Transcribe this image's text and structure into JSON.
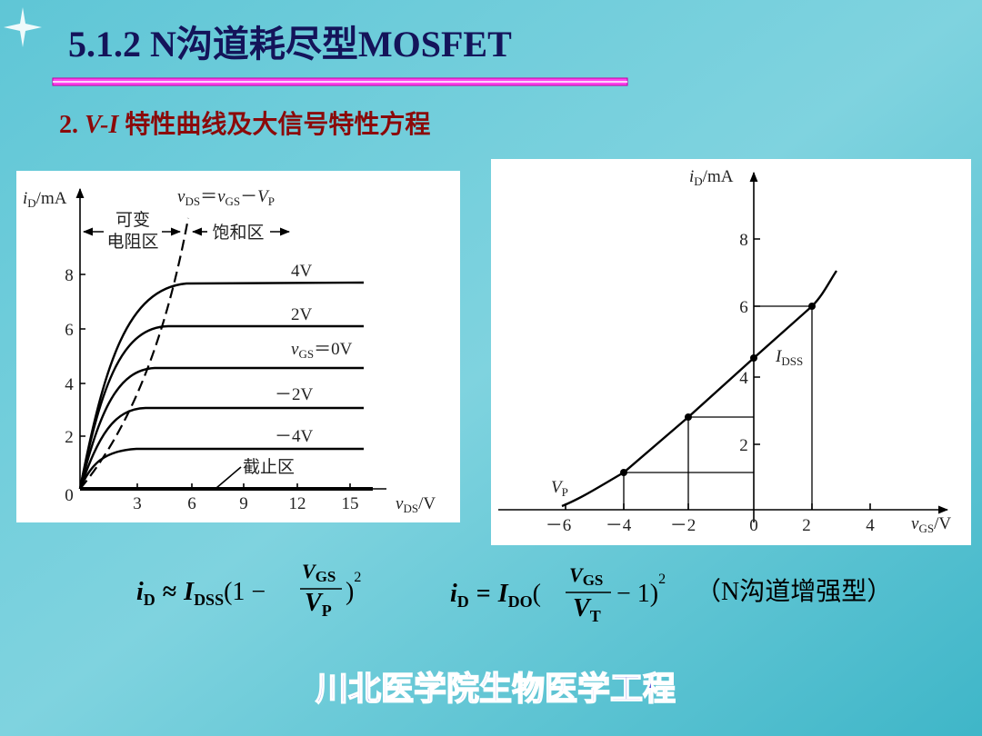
{
  "header": {
    "title": "5.1.2  N沟道耗尽型MOSFET",
    "subtitle_number": "2.",
    "subtitle_vi": "V-I",
    "subtitle_text": "特性曲线及大信号特性方程"
  },
  "output_figure": {
    "y_label": "i",
    "y_label_sub": "D",
    "y_label_unit": "/mA",
    "x_label": "v",
    "x_label_sub": "DS",
    "x_label_unit": "/V",
    "origin": "0",
    "xticks": [
      "3",
      "6",
      "9",
      "12",
      "15"
    ],
    "yticks": [
      "2",
      "4",
      "6",
      "8"
    ],
    "boundary": {
      "v1": "v",
      "s1": "DS",
      "eq": "＝",
      "v2": "v",
      "s2": "GS",
      "minus": "－",
      "v3": "V",
      "s3": "P"
    },
    "region_ohmic_1": "可变",
    "region_ohmic_2": "电阻区",
    "region_saturation": "饱和区",
    "region_cutoff": "截止区",
    "curve_labels": {
      "c4": "4V",
      "c2": "2V",
      "c0_v": "v",
      "c0_sub": "GS",
      "c0_rest": "＝0V",
      "cm2": "－2V",
      "cm4": "－4V"
    }
  },
  "transfer_figure": {
    "y_label": "i",
    "y_label_sub": "D",
    "y_label_unit": "/mA",
    "x_label": "v",
    "x_label_sub": "GS",
    "x_label_unit": "/V",
    "xticks": [
      "－6",
      "－4",
      "－2",
      "0",
      "2",
      "4"
    ],
    "yticks": [
      "2",
      "4",
      "6",
      "8"
    ],
    "idss": "I",
    "idss_sub": "DSS",
    "vp": "V",
    "vp_sub": "P"
  },
  "formulas": {
    "depletion": {
      "lhs": "i",
      "lhs_sub": "D",
      "relation": "≈",
      "coef": "I",
      "coef_sub": "DSS",
      "open": "(1 −",
      "num": "V",
      "num_sub": "GS",
      "den": "V",
      "den_sub": "P",
      "close": ")",
      "power": "2"
    },
    "enhancement": {
      "lhs": "i",
      "lhs_sub": "D",
      "relation": "=",
      "coef": "I",
      "coef_sub": "DO",
      "open": "(",
      "num": "V",
      "num_sub": "GS",
      "den": "V",
      "den_sub": "T",
      "close": "− 1)",
      "power": "2",
      "note": "（N沟道增强型）"
    }
  },
  "footer": "川北医学院生物医学工程"
}
